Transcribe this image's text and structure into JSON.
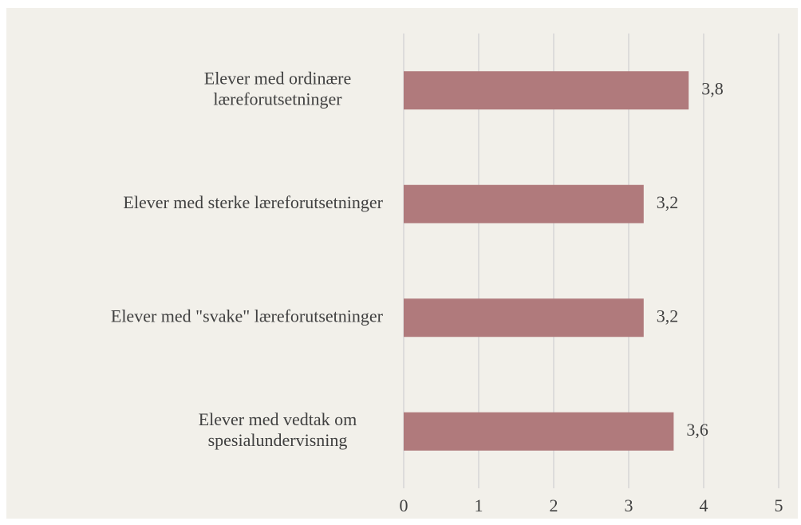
{
  "chart_data": {
    "type": "bar",
    "orientation": "horizontal",
    "categories": [
      [
        "Elever med ordinære",
        "læreforutsetninger"
      ],
      [
        "Elever med sterke læreforutsetninger"
      ],
      [
        "Elever med \"svake\" læreforutsetninger"
      ],
      [
        "Elever med vedtak om",
        "spesialundervisning"
      ]
    ],
    "values": [
      3.8,
      3.2,
      3.2,
      3.6
    ],
    "value_labels": [
      "3,8",
      "3,2",
      "3,2",
      "3,6"
    ],
    "color": "#b07a7c",
    "xlim": [
      0,
      5
    ],
    "xticks": [
      0,
      1,
      2,
      3,
      4,
      5
    ],
    "grid": true
  }
}
